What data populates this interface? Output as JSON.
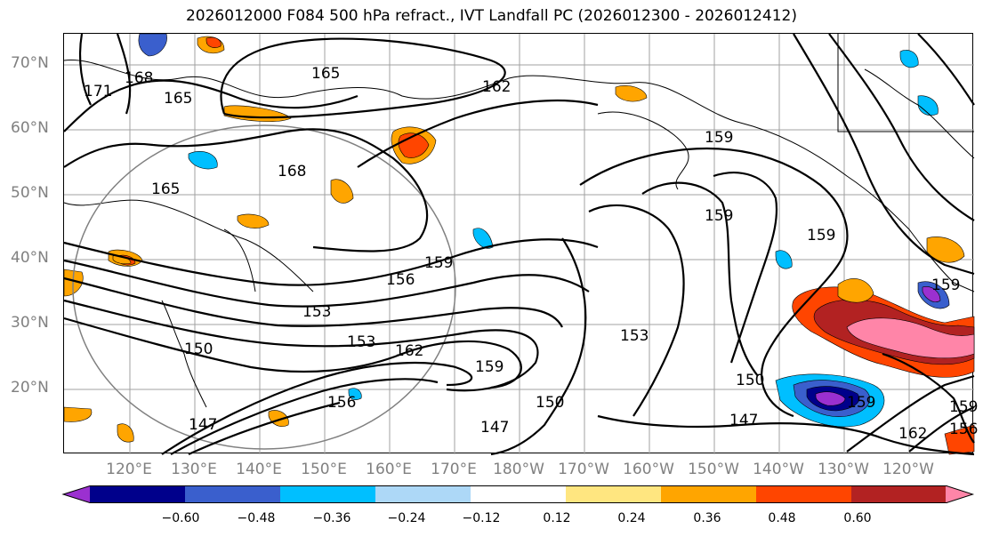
{
  "title": "2026012000 F084 500 hPa refract., IVT Landfall PC (2026012300 - 2026012412)",
  "lat_labels": [
    "70°N",
    "60°N",
    "50°N",
    "40°N",
    "30°N",
    "20°N"
  ],
  "lon_labels": [
    "120°E",
    "130°E",
    "140°E",
    "150°E",
    "160°E",
    "170°E",
    "180°W",
    "170°W",
    "160°W",
    "150°W",
    "140°W",
    "130°W",
    "120°W"
  ],
  "contour_labels": [
    "171",
    "168",
    "165",
    "165",
    "165",
    "162",
    "168",
    "159",
    "159",
    "159",
    "159",
    "156",
    "153",
    "150",
    "153",
    "162",
    "159",
    "153",
    "150",
    "147",
    "150",
    "147",
    "156",
    "147",
    "159",
    "162",
    "159",
    "156",
    "159"
  ],
  "colorbar": {
    "ticks": [
      "−0.60",
      "−0.48",
      "−0.36",
      "−0.24",
      "−0.12",
      "0.12",
      "0.24",
      "0.36",
      "0.48",
      "0.60"
    ],
    "colors": [
      "#9b30d0",
      "#00008b",
      "#3a5fcd",
      "#00bfff",
      "#add8f7",
      "#ffffff",
      "#ffe680",
      "#ffa500",
      "#ff4500",
      "#b22222",
      "#ff85a8"
    ]
  }
}
